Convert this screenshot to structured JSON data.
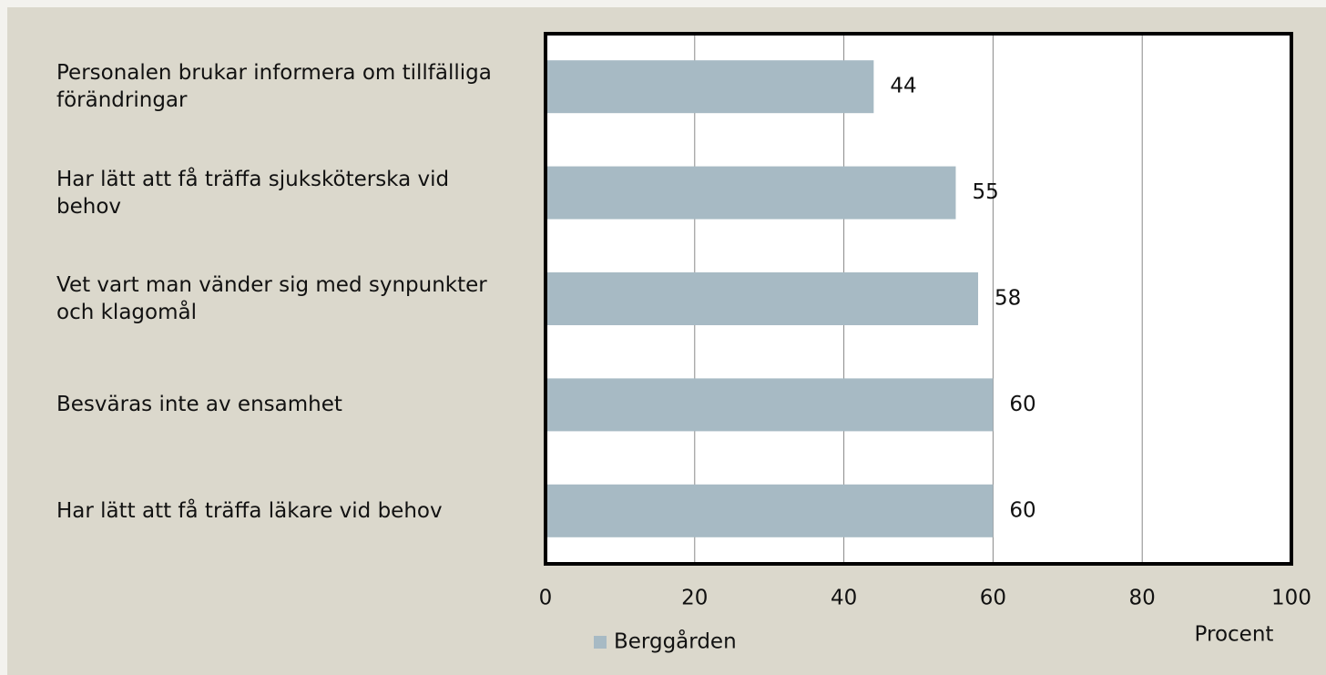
{
  "chart_data": {
    "type": "hbar",
    "categories": [
      "Personalen brukar informera om tillfälliga förändringar",
      "Har lätt att få träffa sjuksköterska vid behov",
      "Vet vart man vänder sig med synpunkter och klagomål",
      "Besväras inte av ensamhet",
      "Har lätt att få träffa läkare vid behov"
    ],
    "series": [
      {
        "name": "Berggården",
        "color": "#a7bac4",
        "values": [
          44,
          55,
          58,
          60,
          60
        ]
      }
    ],
    "xlim": [
      0,
      100
    ],
    "xticks": [
      0,
      20,
      40,
      60,
      80,
      100
    ],
    "x_label": "Procent",
    "grid": true,
    "legend": "bottom"
  }
}
